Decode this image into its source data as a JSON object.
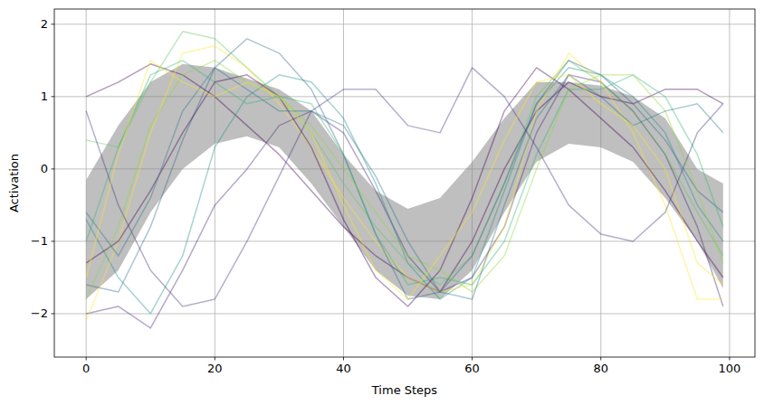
{
  "chart_data": {
    "type": "line",
    "x_label": "Time Steps",
    "y_label": "Activation",
    "x": [
      0,
      5,
      10,
      15,
      20,
      25,
      30,
      35,
      40,
      45,
      50,
      55,
      60,
      65,
      70,
      75,
      80,
      85,
      90,
      95,
      99
    ],
    "xlim": [
      -4.95,
      103.95
    ],
    "xticks": [
      0,
      20,
      40,
      60,
      80,
      100
    ],
    "ylim": [
      -2.6,
      2.21
    ],
    "yticks": [
      -2,
      -1,
      0,
      1,
      2
    ],
    "grid": true,
    "band_color": "#808080",
    "band_lower": [
      -1.8,
      -1.4,
      -0.6,
      0.0,
      0.35,
      0.45,
      0.3,
      -0.2,
      -0.8,
      -1.4,
      -1.75,
      -1.8,
      -1.4,
      -0.6,
      0.1,
      0.35,
      0.3,
      0.1,
      -0.4,
      -1.0,
      -1.65
    ],
    "band_upper": [
      -0.15,
      0.6,
      1.2,
      1.45,
      1.4,
      1.25,
      1.1,
      0.8,
      0.2,
      -0.3,
      -0.55,
      -0.4,
      0.1,
      0.7,
      1.2,
      1.2,
      1.15,
      1.0,
      0.7,
      0.0,
      -0.2
    ],
    "series": [
      {
        "color": "#440154",
        "values": [
          1.0,
          1.2,
          1.45,
          1.3,
          1.0,
          0.6,
          0.2,
          -0.3,
          -0.8,
          -1.2,
          -1.5,
          -1.7,
          -1.0,
          0.0,
          0.8,
          1.2,
          1.0,
          0.9,
          1.1,
          1.1,
          0.9
        ]
      },
      {
        "color": "#482878",
        "values": [
          -2.0,
          -1.9,
          -2.2,
          -1.4,
          -0.5,
          0.0,
          0.6,
          0.8,
          0.5,
          -0.3,
          -1.2,
          -1.7,
          -1.5,
          -0.8,
          0.5,
          1.3,
          1.2,
          0.8,
          0.2,
          -0.8,
          -1.9
        ]
      },
      {
        "color": "#21918c",
        "values": [
          -0.7,
          -1.5,
          -2.0,
          -1.2,
          0.3,
          1.0,
          1.3,
          1.2,
          0.7,
          -0.2,
          -1.3,
          -1.8,
          -1.5,
          -0.3,
          0.9,
          1.4,
          1.3,
          1.0,
          0.5,
          -0.5,
          -1.0
        ]
      },
      {
        "color": "#5ec962",
        "values": [
          0.4,
          0.3,
          1.2,
          1.9,
          1.8,
          1.4,
          1.0,
          0.5,
          -0.2,
          -0.8,
          -1.3,
          -1.6,
          -1.2,
          -0.2,
          1.0,
          1.5,
          1.2,
          0.8,
          0.2,
          -0.6,
          -1.2
        ]
      },
      {
        "color": "#fde725",
        "values": [
          -2.1,
          -1.0,
          0.5,
          1.6,
          1.7,
          1.4,
          0.9,
          0.3,
          -0.4,
          -1.0,
          -1.5,
          -1.7,
          -1.6,
          -0.8,
          0.8,
          1.6,
          1.2,
          0.5,
          -0.5,
          -1.8,
          -1.8
        ]
      },
      {
        "color": "#31688e",
        "values": [
          -1.6,
          -1.7,
          -0.8,
          0.4,
          1.4,
          1.8,
          1.6,
          1.1,
          0.2,
          -0.9,
          -1.8,
          -1.7,
          -1.2,
          -0.2,
          0.9,
          1.5,
          1.3,
          0.9,
          0.4,
          -0.3,
          -0.6
        ]
      },
      {
        "color": "#35b779",
        "values": [
          -1.0,
          0.3,
          1.3,
          1.5,
          1.2,
          0.9,
          1.0,
          0.9,
          0.2,
          -0.9,
          -1.6,
          -1.5,
          -1.6,
          -1.0,
          0.2,
          1.1,
          1.1,
          1.3,
          1.0,
          0.2,
          -0.8
        ]
      },
      {
        "color": "#440154",
        "values": [
          -1.3,
          -1.0,
          -0.3,
          0.5,
          1.2,
          1.3,
          1.0,
          0.3,
          -0.7,
          -1.5,
          -1.9,
          -1.4,
          -0.4,
          0.8,
          1.4,
          1.1,
          0.7,
          0.3,
          -0.3,
          -1.0,
          -1.5
        ]
      },
      {
        "color": "#443983",
        "values": [
          0.8,
          -0.5,
          -1.4,
          -1.9,
          -1.8,
          -1.0,
          -0.1,
          0.8,
          1.1,
          1.1,
          0.6,
          0.5,
          1.4,
          1.0,
          0.3,
          -0.5,
          -0.9,
          -1.0,
          -0.6,
          0.5,
          0.9
        ]
      },
      {
        "color": "#90d743",
        "values": [
          -1.8,
          -0.8,
          0.6,
          1.3,
          1.5,
          1.2,
          1.0,
          0.6,
          0.0,
          -0.6,
          -1.2,
          -1.4,
          -1.7,
          -1.2,
          0.0,
          1.1,
          1.3,
          1.3,
          0.8,
          -0.3,
          -1.3
        ]
      },
      {
        "color": "#2a788e",
        "values": [
          -0.6,
          -1.2,
          -0.4,
          0.8,
          1.4,
          1.1,
          0.8,
          0.8,
          0.6,
          -0.1,
          -1.0,
          -1.7,
          -1.8,
          -0.5,
          0.7,
          1.3,
          1.0,
          0.6,
          0.8,
          0.9,
          0.5
        ]
      },
      {
        "color": "#fde725",
        "values": [
          -1.5,
          0.2,
          1.5,
          1.2,
          1.0,
          1.2,
          1.0,
          0.5,
          -0.5,
          -1.4,
          -1.8,
          -1.2,
          -0.6,
          0.4,
          1.2,
          1.3,
          0.9,
          0.6,
          0.0,
          -1.3,
          -1.6
        ]
      }
    ]
  }
}
